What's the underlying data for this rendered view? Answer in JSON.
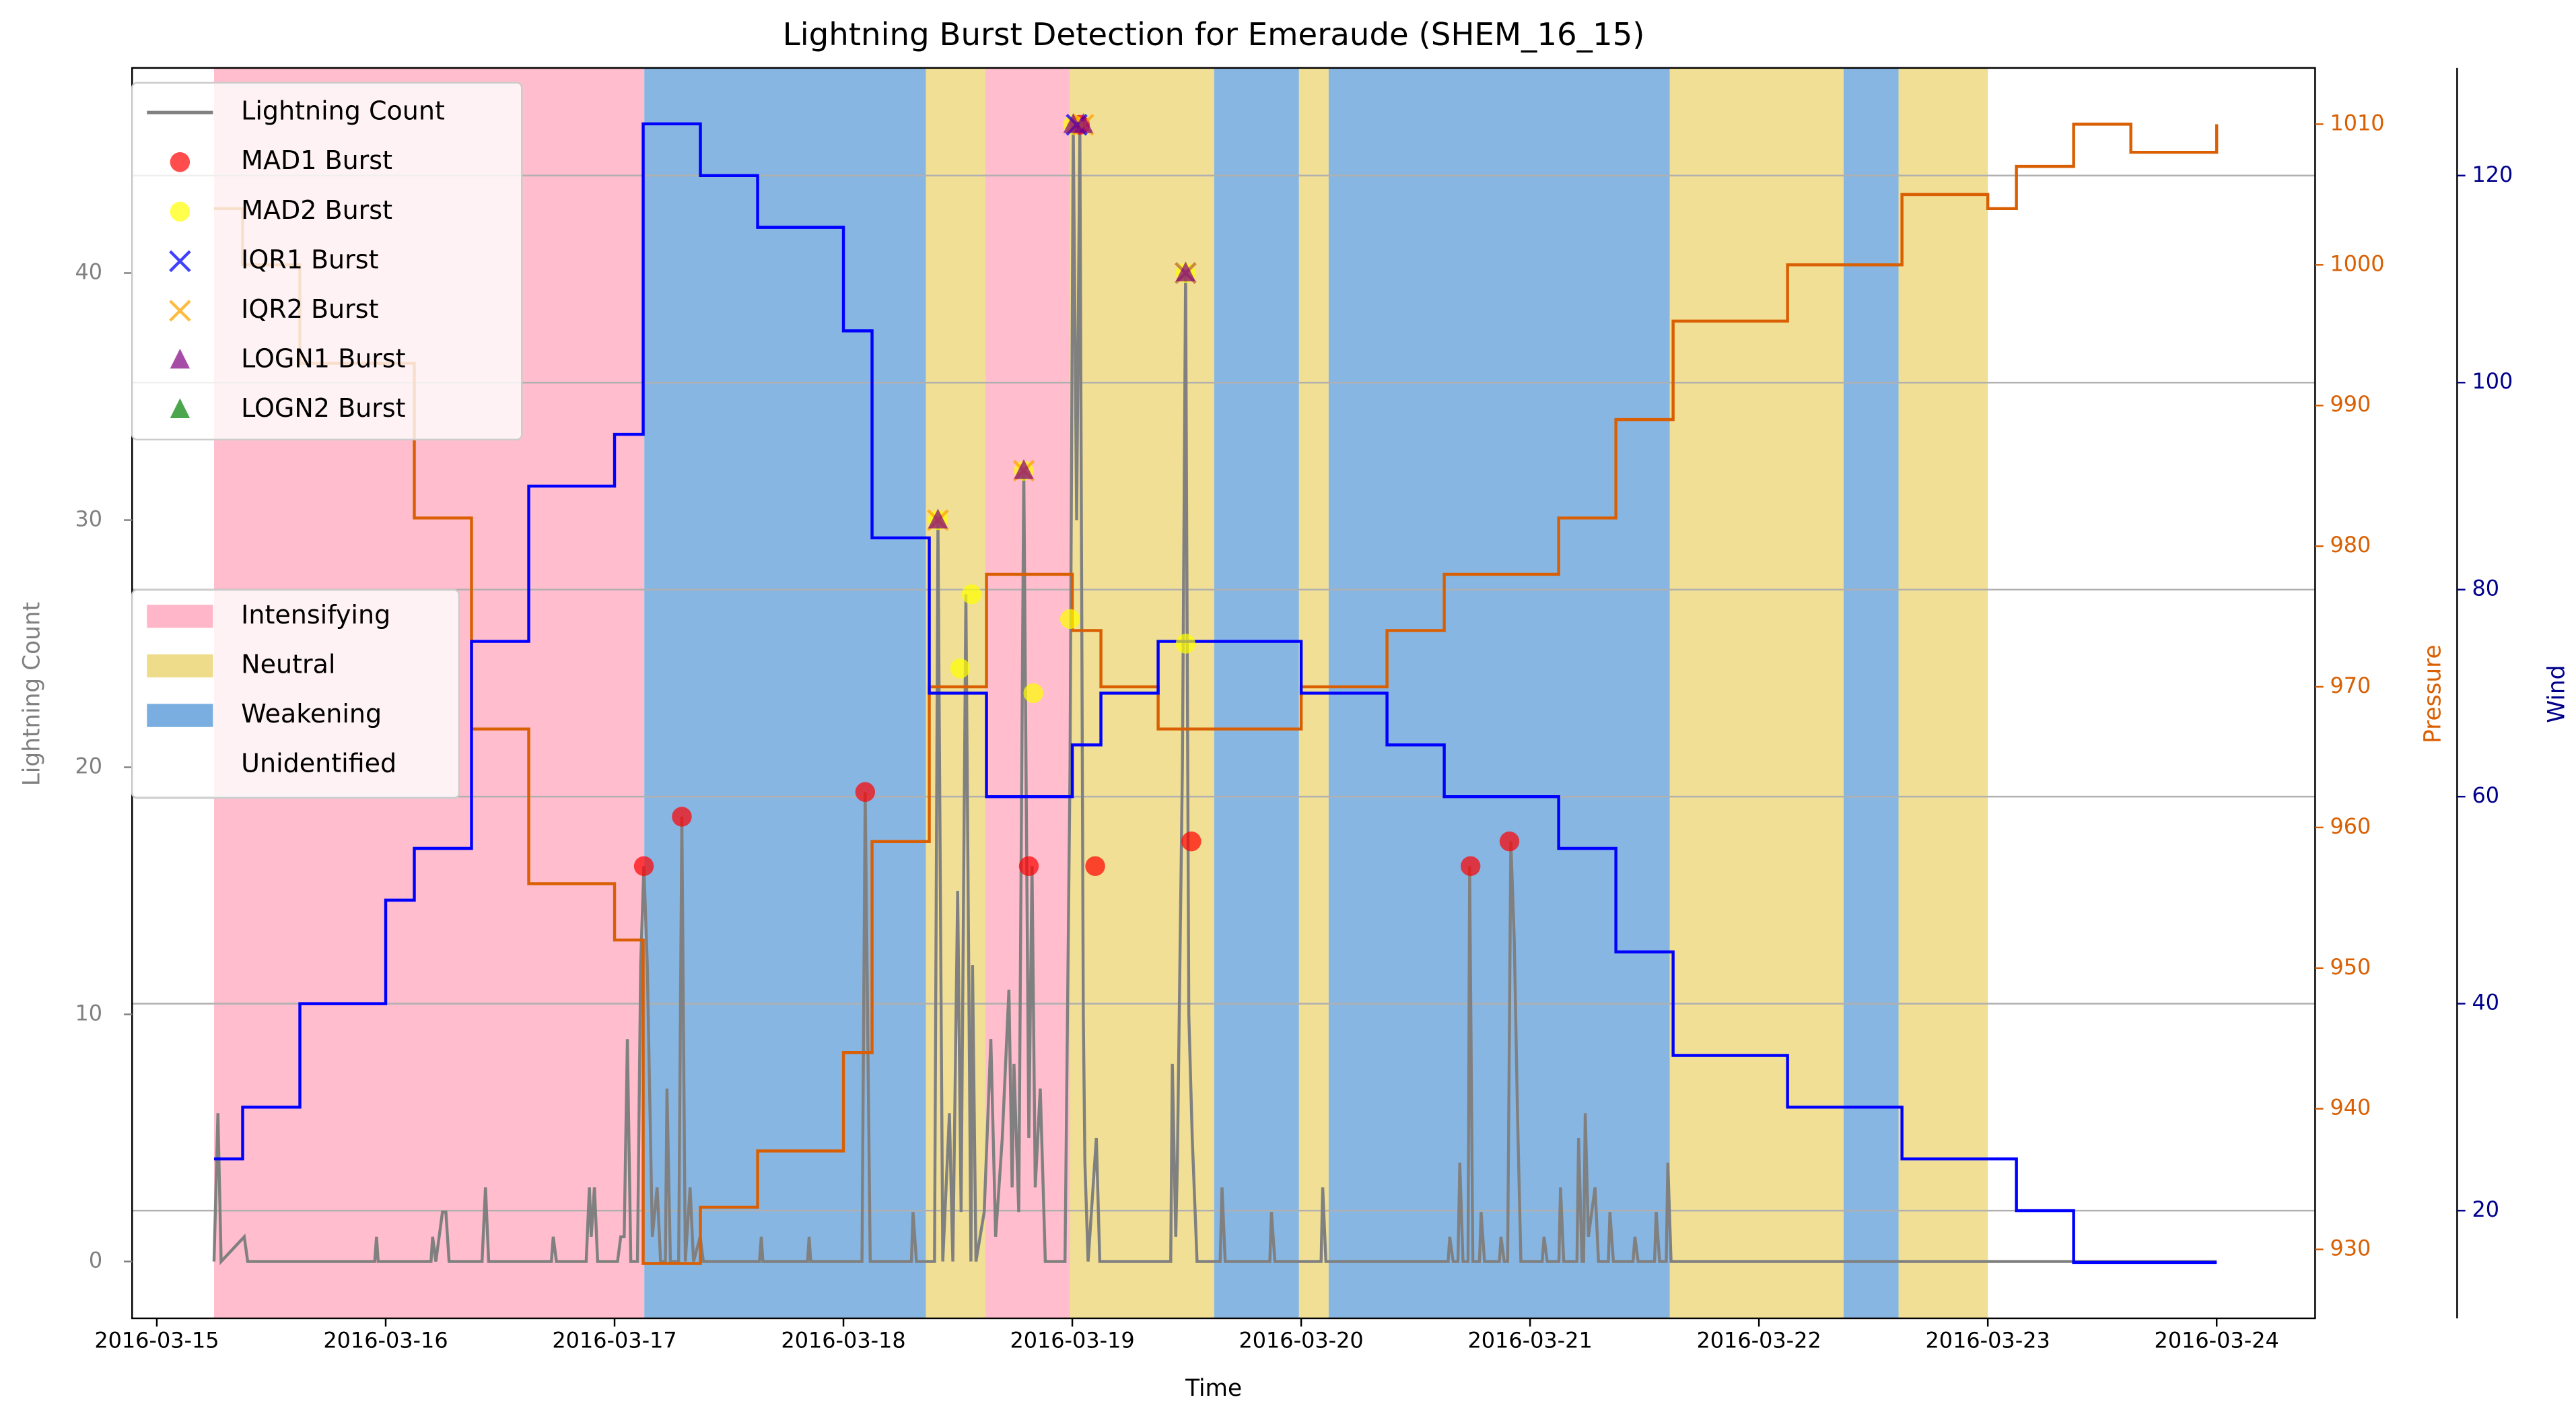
{
  "chart_data": {
    "type": "line",
    "title": "Lightning Burst Detection for Emeraude (SHEM_16_15)",
    "x_label": "Time",
    "y_label": "Lightning Count",
    "y2_label": "Pressure",
    "y3_label": "Wind",
    "xlim": [
      -0.108,
      9.43
    ],
    "xticks": [
      {
        "value": 0,
        "label": "2016-03-15"
      },
      {
        "value": 1,
        "label": "2016-03-16"
      },
      {
        "value": 2,
        "label": "2016-03-17"
      },
      {
        "value": 3,
        "label": "2016-03-18"
      },
      {
        "value": 4,
        "label": "2016-03-19"
      },
      {
        "value": 5,
        "label": "2016-03-20"
      },
      {
        "value": 6,
        "label": "2016-03-21"
      },
      {
        "value": 7,
        "label": "2016-03-22"
      },
      {
        "value": 8,
        "label": "2016-03-23"
      },
      {
        "value": 9,
        "label": "2016-03-24"
      }
    ],
    "ylim": [
      -2.3,
      48.3
    ],
    "yticks": [
      0,
      10,
      20,
      30,
      40
    ],
    "y2lim": [
      925.1,
      1014
    ],
    "y2ticks": [
      930,
      940,
      950,
      960,
      970,
      980,
      990,
      1000,
      1010
    ],
    "y3lim": [
      9.6,
      130.4
    ],
    "y3ticks": [
      20,
      40,
      60,
      80,
      100,
      120
    ],
    "grid": "y3",
    "legend": "upper left",
    "phase_legend": "center left",
    "y_color": "#808080",
    "y2_color": "#d95f02",
    "y3_color": "#00008b",
    "phases": [
      {
        "name": "Intensifying",
        "color": "#ffb6c8",
        "spans": [
          [
            0.25,
            2.13
          ],
          [
            3.62,
            3.99
          ]
        ]
      },
      {
        "name": "Neutral",
        "color": "#eedc8a",
        "spans": [
          [
            3.36,
            3.62
          ],
          [
            3.99,
            4.62
          ],
          [
            4.99,
            5.12
          ],
          [
            6.61,
            7.37
          ],
          [
            7.61,
            8.0
          ]
        ]
      },
      {
        "name": "Weakening",
        "color": "#7aaee0",
        "spans": [
          [
            2.13,
            3.36
          ],
          [
            4.62,
            4.99
          ],
          [
            5.12,
            6.61
          ],
          [
            7.37,
            7.61
          ]
        ]
      },
      {
        "name": "Unidentified",
        "color": "#ffffff",
        "spans": []
      }
    ],
    "pressure": {
      "type": "step",
      "axis": "y2",
      "color": "#d95f02",
      "x": [
        0.25,
        0.375,
        0.625,
        1.125,
        1.375,
        1.625,
        2.0,
        2.125,
        2.375,
        2.625,
        3.0,
        3.125,
        3.375,
        3.625,
        4.0,
        4.125,
        4.375,
        5.0,
        5.375,
        5.625,
        6.125,
        6.375,
        6.625,
        7.125,
        7.625,
        8.0,
        8.125,
        8.375,
        8.625,
        9.0
      ],
      "values": [
        1004,
        1000,
        993,
        982,
        967,
        956,
        952,
        929,
        933,
        937,
        944,
        959,
        970,
        978,
        974,
        970,
        967,
        970,
        974,
        978,
        982,
        989,
        996,
        1000,
        1005,
        1004,
        1007,
        1010,
        1008,
        1010
      ]
    },
    "wind": {
      "type": "step",
      "axis": "y3",
      "color": "#0000ff",
      "x": [
        0.25,
        0.375,
        0.625,
        1.0,
        1.125,
        1.375,
        1.625,
        2.0,
        2.125,
        2.375,
        2.625,
        3.0,
        3.125,
        3.375,
        3.625,
        4.0,
        4.125,
        4.375,
        5.0,
        5.375,
        5.625,
        6.125,
        6.375,
        6.625,
        7.125,
        7.625,
        8.125,
        8.375,
        9.0
      ],
      "values": [
        25,
        30,
        40,
        50,
        55,
        75,
        90,
        95,
        125,
        120,
        115,
        105,
        85,
        70,
        60,
        65,
        70,
        75,
        70,
        65,
        60,
        55,
        45,
        35,
        30,
        25,
        20,
        15,
        15
      ]
    },
    "series": [
      {
        "name": "Lightning Count",
        "type": "line",
        "color": "#808080",
        "x": [
          0.25,
          0.267,
          0.281,
          0.382,
          0.397,
          0.952,
          0.96,
          0.967,
          1.198,
          1.205,
          1.219,
          1.248,
          1.263,
          1.277,
          1.421,
          1.436,
          1.45,
          1.724,
          1.732,
          1.746,
          1.876,
          1.89,
          1.898,
          1.912,
          1.926,
          2.013,
          2.027,
          2.042,
          2.056,
          2.071,
          2.1,
          2.114,
          2.128,
          2.143,
          2.165,
          2.186,
          2.201,
          2.222,
          2.229,
          2.244,
          2.28,
          2.294,
          2.309,
          2.33,
          2.345,
          2.374,
          2.388,
          2.633,
          2.641,
          2.648,
          2.843,
          2.85,
          2.857,
          3.081,
          3.095,
          3.117,
          3.297,
          3.304,
          3.319,
          3.398,
          3.413,
          3.434,
          3.463,
          3.478,
          3.499,
          3.514,
          3.535,
          3.557,
          3.564,
          3.579,
          3.615,
          3.644,
          3.665,
          3.694,
          3.723,
          3.737,
          3.745,
          3.766,
          3.788,
          3.81,
          3.824,
          3.838,
          3.86,
          3.882,
          3.968,
          3.99,
          4.004,
          4.019,
          4.033,
          4.048,
          4.055,
          4.069,
          4.105,
          4.12,
          4.43,
          4.437,
          4.452,
          4.459,
          4.481,
          4.495,
          4.509,
          4.524,
          4.545,
          4.646,
          4.654,
          4.668,
          4.863,
          4.87,
          4.885,
          5.087,
          5.094,
          5.108,
          5.642,
          5.649,
          5.664,
          5.685,
          5.693,
          5.707,
          5.729,
          5.736,
          5.75,
          5.779,
          5.786,
          5.801,
          5.866,
          5.873,
          5.887,
          5.902,
          5.916,
          5.931,
          5.945,
          5.96,
          6.053,
          6.061,
          6.075,
          6.126,
          6.133,
          6.147,
          6.205,
          6.212,
          6.227,
          6.234,
          6.241,
          6.255,
          6.284,
          6.299,
          6.342,
          6.349,
          6.364,
          6.45,
          6.458,
          6.472,
          6.544,
          6.551,
          6.566,
          6.595,
          6.602,
          6.616,
          9.0
        ],
        "values": [
          0,
          6,
          0,
          1,
          0,
          0,
          1,
          0,
          0,
          1,
          0,
          2,
          2,
          0,
          0,
          3,
          0,
          0,
          1,
          0,
          0,
          3,
          1,
          3,
          0,
          0,
          1,
          1,
          9,
          0,
          0,
          12,
          16,
          12,
          1,
          3,
          0,
          0,
          7,
          0,
          0,
          18,
          0,
          3,
          0,
          1,
          0,
          0,
          1,
          0,
          0,
          1,
          0,
          0,
          19,
          0,
          0,
          2,
          0,
          0,
          30,
          0,
          6,
          0,
          15,
          2,
          27,
          0,
          12,
          0,
          2,
          9,
          1,
          5,
          11,
          3,
          8,
          2,
          32,
          5,
          16,
          3,
          7,
          0,
          0,
          20,
          46,
          30,
          46,
          10,
          4,
          0,
          5,
          0,
          0,
          8,
          1,
          4,
          20,
          40,
          10,
          5,
          0,
          0,
          3,
          0,
          0,
          2,
          0,
          0,
          3,
          0,
          0,
          1,
          0,
          0,
          4,
          0,
          0,
          16,
          0,
          0,
          2,
          0,
          0,
          1,
          0,
          0,
          17,
          13,
          6,
          0,
          0,
          1,
          0,
          0,
          3,
          0,
          0,
          5,
          0,
          0,
          6,
          1,
          3,
          0,
          0,
          2,
          0,
          0,
          1,
          0,
          0,
          2,
          0,
          0,
          4,
          0,
          0
        ]
      },
      {
        "name": "MAD1 Burst",
        "type": "scatter",
        "marker": "circle",
        "color": "#ff0000",
        "x": [
          2.128,
          2.294,
          3.095,
          3.81,
          4.033,
          4.1,
          4.52,
          5.74,
          5.91
        ],
        "values": [
          16,
          18,
          19,
          16,
          46,
          16,
          17,
          16,
          17
        ]
      },
      {
        "name": "MAD2 Burst",
        "type": "scatter",
        "marker": "circle",
        "color": "#ffff00",
        "x": [
          3.413,
          3.51,
          3.56,
          3.788,
          3.83,
          3.99,
          4.004,
          4.495,
          4.495
        ],
        "values": [
          30,
          24,
          27,
          32,
          23,
          26,
          46,
          25,
          40
        ]
      },
      {
        "name": "IQR1 Burst",
        "type": "scatter",
        "marker": "x",
        "color": "#0000ff",
        "x": [
          4.019,
          4.495
        ],
        "values": [
          46,
          40
        ]
      },
      {
        "name": "IQR2 Burst",
        "type": "scatter",
        "marker": "x",
        "color": "#ffa500",
        "x": [
          3.413,
          3.788,
          4.048,
          4.495
        ],
        "values": [
          30,
          32,
          46,
          40
        ]
      },
      {
        "name": "LOGN1 Burst",
        "type": "scatter",
        "marker": "triangle",
        "color": "#800080",
        "x": [
          3.413,
          3.788,
          4.004,
          4.048,
          4.495
        ],
        "values": [
          30,
          32,
          46,
          46,
          40
        ]
      },
      {
        "name": "LOGN2 Burst",
        "type": "scatter",
        "marker": "triangle",
        "color": "#008000",
        "x": [],
        "values": []
      }
    ]
  }
}
